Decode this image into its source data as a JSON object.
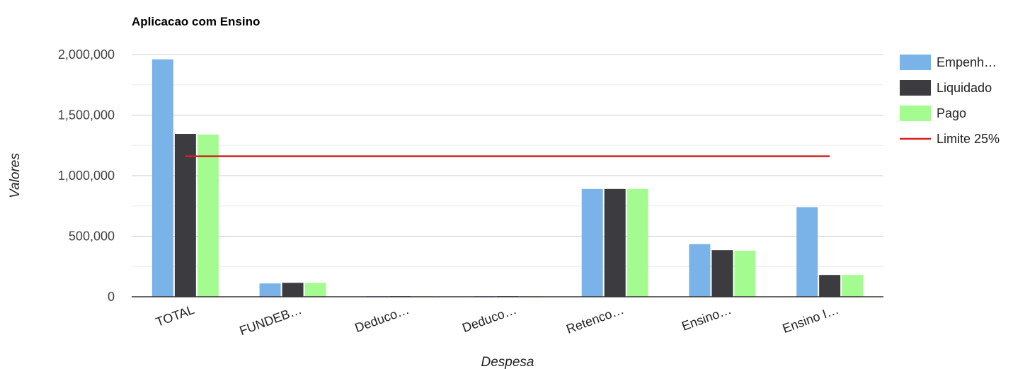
{
  "chart_data": {
    "type": "bar",
    "title": "Aplicacao com Ensino",
    "xlabel": "Despesa",
    "ylabel": "Valores",
    "categories": [
      "TOTAL",
      "FUNDEB…",
      "Deduco…",
      "Deduco…",
      "Retenco…",
      "Ensino…",
      "Ensino I…"
    ],
    "series": [
      {
        "name": "Empenh…",
        "color": "#7ab3e8",
        "values": [
          1960000,
          110000,
          5000,
          5000,
          890000,
          435000,
          740000
        ]
      },
      {
        "name": "Liquidado",
        "color": "#3b3b40",
        "values": [
          1345000,
          115000,
          5000,
          5000,
          890000,
          385000,
          180000
        ]
      },
      {
        "name": "Pago",
        "color": "#a4fb8f",
        "values": [
          1340000,
          115000,
          5000,
          5000,
          890000,
          380000,
          180000
        ]
      }
    ],
    "reference_line": {
      "name": "Limite 25%",
      "color": "#d62020",
      "value": 1160000
    },
    "ylim": [
      0,
      2000000
    ],
    "yticks": [
      "2,000,000",
      "1,500,000",
      "1,000,000",
      "500,000",
      "0"
    ],
    "ytick_values": [
      2000000,
      1500000,
      1000000,
      500000,
      0
    ],
    "grid": true,
    "legend_position": "right"
  }
}
